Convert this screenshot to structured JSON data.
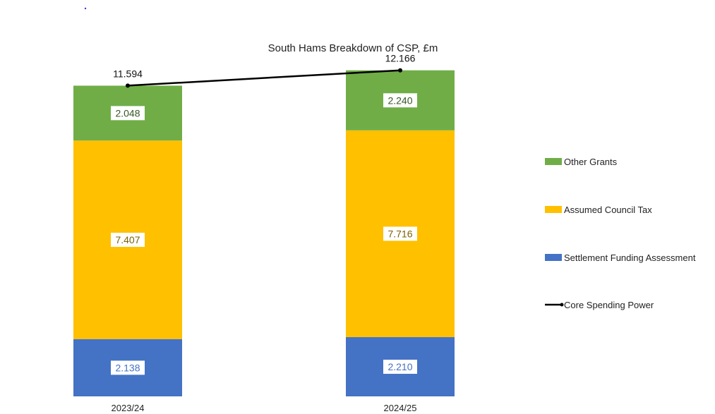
{
  "chart_data": {
    "type": "bar",
    "stacked": true,
    "title": "South Hams Breakdown of CSP, £m",
    "xlabel": "",
    "ylabel": "",
    "ylim": [
      0,
      14
    ],
    "categories": [
      "2023/24",
      "2024/25"
    ],
    "series": [
      {
        "name": "Settlement Funding Assessment",
        "type": "bar",
        "values": [
          2.138,
          2.21
        ],
        "value_labels": [
          "2.138",
          "2.210"
        ],
        "color": "#4472C4",
        "label_color": "#4472C4"
      },
      {
        "name": "Assumed Council Tax",
        "type": "bar",
        "values": [
          7.407,
          7.716
        ],
        "value_labels": [
          "7.407",
          "7.716"
        ],
        "color": "#FFC000",
        "label_color": "#7F6000"
      },
      {
        "name": "Other Grants",
        "type": "bar",
        "values": [
          2.048,
          2.24
        ],
        "value_labels": [
          "2.048",
          "2.240"
        ],
        "color": "#70AD47",
        "label_color": "#375623"
      },
      {
        "name": "Core Spending Power",
        "type": "line",
        "values": [
          11.594,
          12.166
        ],
        "value_labels": [
          "11.594",
          "12.166"
        ],
        "color": "#000000"
      }
    ],
    "legend": {
      "position": "right",
      "order": [
        "Other Grants",
        "Assumed Council Tax",
        "Settlement Funding Assessment",
        "Core Spending Power"
      ]
    },
    "grid": false
  }
}
